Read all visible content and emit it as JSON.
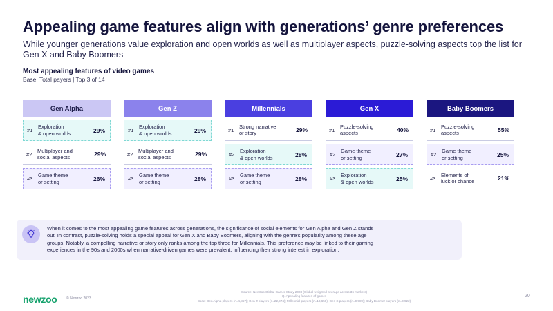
{
  "title": "Appealing game features align with generations’ genre preferences",
  "subtitle": "While younger generations value exploration and open worlds as well as multiplayer aspects, puzzle-solving aspects top the list for Gen X and Baby Boomers",
  "chart_heading": "Most appealing features of video games",
  "chart_base": "Base: Total payers | Top 3 of 14",
  "generations": [
    {
      "name": "Gen Alpha",
      "header_bg": "#cbc7f4",
      "header_color": "#1e1e4a",
      "rows": [
        {
          "rank": "#1",
          "feature": [
            "Exploration",
            "& open worlds"
          ],
          "pct": "29%",
          "highlight": "explore"
        },
        {
          "rank": "#2",
          "feature": [
            "Multiplayer and",
            "social aspects"
          ],
          "pct": "29%",
          "highlight": "none"
        },
        {
          "rank": "#3",
          "feature": [
            "Game theme",
            "or setting"
          ],
          "pct": "26%",
          "highlight": "theme"
        }
      ]
    },
    {
      "name": "Gen Z",
      "header_bg": "#8b82ec",
      "header_color": "#ffffff",
      "rows": [
        {
          "rank": "#1",
          "feature": [
            "Exploration",
            "& open worlds"
          ],
          "pct": "29%",
          "highlight": "explore"
        },
        {
          "rank": "#2",
          "feature": [
            "Multiplayer and",
            "social aspects"
          ],
          "pct": "29%",
          "highlight": "none"
        },
        {
          "rank": "#3",
          "feature": [
            "Game theme",
            "or setting"
          ],
          "pct": "28%",
          "highlight": "theme"
        }
      ]
    },
    {
      "name": "Millennials",
      "header_bg": "#4a3fe0",
      "header_color": "#ffffff",
      "rows": [
        {
          "rank": "#1",
          "feature": [
            "Strong narrative",
            "or story"
          ],
          "pct": "29%",
          "highlight": "none"
        },
        {
          "rank": "#2",
          "feature": [
            "Exploration",
            "& open worlds"
          ],
          "pct": "28%",
          "highlight": "explore"
        },
        {
          "rank": "#3",
          "feature": [
            "Game theme",
            "or setting"
          ],
          "pct": "28%",
          "highlight": "theme"
        }
      ]
    },
    {
      "name": "Gen X",
      "header_bg": "#2b1bd6",
      "header_color": "#ffffff",
      "rows": [
        {
          "rank": "#1",
          "feature": [
            "Puzzle-solving",
            "aspects"
          ],
          "pct": "40%",
          "highlight": "none"
        },
        {
          "rank": "#2",
          "feature": [
            "Game theme",
            "or setting"
          ],
          "pct": "27%",
          "highlight": "theme"
        },
        {
          "rank": "#3",
          "feature": [
            "Exploration",
            "& open worlds"
          ],
          "pct": "25%",
          "highlight": "explore"
        }
      ]
    },
    {
      "name": "Baby Boomers",
      "header_bg": "#1b1680",
      "header_color": "#ffffff",
      "rows": [
        {
          "rank": "#1",
          "feature": [
            "Puzzle-solving",
            "aspects"
          ],
          "pct": "55%",
          "highlight": "none"
        },
        {
          "rank": "#2",
          "feature": [
            "Game theme",
            "or setting"
          ],
          "pct": "25%",
          "highlight": "theme"
        },
        {
          "rank": "#3",
          "feature": [
            "Elements of",
            "luck or chance"
          ],
          "pct": "21%",
          "highlight": "none"
        }
      ]
    }
  ],
  "insight": {
    "icon": "lightbulb-icon",
    "lines": [
      "When it comes to the most appealing game features across generations, the significance of social elements for Gen Alpha and Gen Z stands",
      "out. In contrast, puzzle-solving holds a special appeal for Gen X and Baby Boomers, aligning with the genre's popularity among these age",
      "groups. Notably, a compelling narrative or story only ranks among the top three for Millennials. This preference may be linked to their gaming",
      "experiences in the 90s and 2000s when narrative-driven games were prevalent, influencing their strong interest in exploration."
    ]
  },
  "footer": {
    "logo": "newzoo",
    "copyright": "© Newzoo 2023",
    "source_lines": [
      "Source: Newzoo Global Gamer Study 2023 (Global weighted average across 36 markets)",
      "Q. Appealing features of games",
      "Base: Gen Alpha players (n=4,857); Gen Z players (n=22,974); Millennial players (n=18,650); Gen X players (n=9,989); Baby Boomer players (n=3,922)"
    ],
    "page_number": "20"
  },
  "colors": {
    "title": "#14143c",
    "explore_bg": "#e6f9f8",
    "theme_bg": "#f1efff",
    "brand_green": "#16a26d",
    "insight_bg": "#f1f0fb"
  }
}
